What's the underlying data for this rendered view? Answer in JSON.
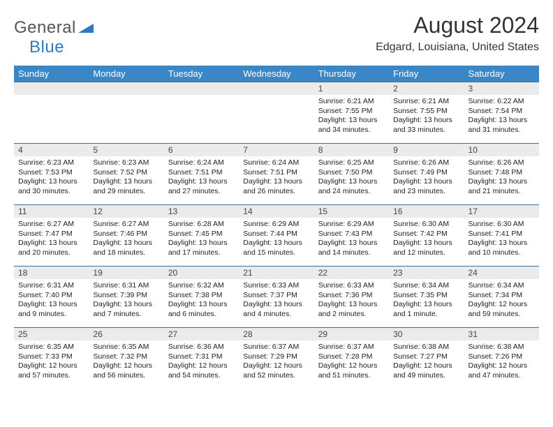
{
  "logo": {
    "part1": "General",
    "part2": "Blue"
  },
  "title": "August 2024",
  "location": "Edgard, Louisiana, United States",
  "day_headers": [
    "Sunday",
    "Monday",
    "Tuesday",
    "Wednesday",
    "Thursday",
    "Friday",
    "Saturday"
  ],
  "colors": {
    "header_bg": "#3a87c8",
    "header_text": "#ffffff",
    "daynum_bg": "#ebebeb",
    "daynum_border": "#3a6ea5",
    "logo_blue": "#2f7abf",
    "logo_gray": "#555555"
  },
  "weeks": [
    [
      {
        "num": "",
        "sunrise": "",
        "sunset": "",
        "daylight": ""
      },
      {
        "num": "",
        "sunrise": "",
        "sunset": "",
        "daylight": ""
      },
      {
        "num": "",
        "sunrise": "",
        "sunset": "",
        "daylight": ""
      },
      {
        "num": "",
        "sunrise": "",
        "sunset": "",
        "daylight": ""
      },
      {
        "num": "1",
        "sunrise": "Sunrise: 6:21 AM",
        "sunset": "Sunset: 7:55 PM",
        "daylight": "Daylight: 13 hours and 34 minutes."
      },
      {
        "num": "2",
        "sunrise": "Sunrise: 6:21 AM",
        "sunset": "Sunset: 7:55 PM",
        "daylight": "Daylight: 13 hours and 33 minutes."
      },
      {
        "num": "3",
        "sunrise": "Sunrise: 6:22 AM",
        "sunset": "Sunset: 7:54 PM",
        "daylight": "Daylight: 13 hours and 31 minutes."
      }
    ],
    [
      {
        "num": "4",
        "sunrise": "Sunrise: 6:23 AM",
        "sunset": "Sunset: 7:53 PM",
        "daylight": "Daylight: 13 hours and 30 minutes."
      },
      {
        "num": "5",
        "sunrise": "Sunrise: 6:23 AM",
        "sunset": "Sunset: 7:52 PM",
        "daylight": "Daylight: 13 hours and 29 minutes."
      },
      {
        "num": "6",
        "sunrise": "Sunrise: 6:24 AM",
        "sunset": "Sunset: 7:51 PM",
        "daylight": "Daylight: 13 hours and 27 minutes."
      },
      {
        "num": "7",
        "sunrise": "Sunrise: 6:24 AM",
        "sunset": "Sunset: 7:51 PM",
        "daylight": "Daylight: 13 hours and 26 minutes."
      },
      {
        "num": "8",
        "sunrise": "Sunrise: 6:25 AM",
        "sunset": "Sunset: 7:50 PM",
        "daylight": "Daylight: 13 hours and 24 minutes."
      },
      {
        "num": "9",
        "sunrise": "Sunrise: 6:26 AM",
        "sunset": "Sunset: 7:49 PM",
        "daylight": "Daylight: 13 hours and 23 minutes."
      },
      {
        "num": "10",
        "sunrise": "Sunrise: 6:26 AM",
        "sunset": "Sunset: 7:48 PM",
        "daylight": "Daylight: 13 hours and 21 minutes."
      }
    ],
    [
      {
        "num": "11",
        "sunrise": "Sunrise: 6:27 AM",
        "sunset": "Sunset: 7:47 PM",
        "daylight": "Daylight: 13 hours and 20 minutes."
      },
      {
        "num": "12",
        "sunrise": "Sunrise: 6:27 AM",
        "sunset": "Sunset: 7:46 PM",
        "daylight": "Daylight: 13 hours and 18 minutes."
      },
      {
        "num": "13",
        "sunrise": "Sunrise: 6:28 AM",
        "sunset": "Sunset: 7:45 PM",
        "daylight": "Daylight: 13 hours and 17 minutes."
      },
      {
        "num": "14",
        "sunrise": "Sunrise: 6:29 AM",
        "sunset": "Sunset: 7:44 PM",
        "daylight": "Daylight: 13 hours and 15 minutes."
      },
      {
        "num": "15",
        "sunrise": "Sunrise: 6:29 AM",
        "sunset": "Sunset: 7:43 PM",
        "daylight": "Daylight: 13 hours and 14 minutes."
      },
      {
        "num": "16",
        "sunrise": "Sunrise: 6:30 AM",
        "sunset": "Sunset: 7:42 PM",
        "daylight": "Daylight: 13 hours and 12 minutes."
      },
      {
        "num": "17",
        "sunrise": "Sunrise: 6:30 AM",
        "sunset": "Sunset: 7:41 PM",
        "daylight": "Daylight: 13 hours and 10 minutes."
      }
    ],
    [
      {
        "num": "18",
        "sunrise": "Sunrise: 6:31 AM",
        "sunset": "Sunset: 7:40 PM",
        "daylight": "Daylight: 13 hours and 9 minutes."
      },
      {
        "num": "19",
        "sunrise": "Sunrise: 6:31 AM",
        "sunset": "Sunset: 7:39 PM",
        "daylight": "Daylight: 13 hours and 7 minutes."
      },
      {
        "num": "20",
        "sunrise": "Sunrise: 6:32 AM",
        "sunset": "Sunset: 7:38 PM",
        "daylight": "Daylight: 13 hours and 6 minutes."
      },
      {
        "num": "21",
        "sunrise": "Sunrise: 6:33 AM",
        "sunset": "Sunset: 7:37 PM",
        "daylight": "Daylight: 13 hours and 4 minutes."
      },
      {
        "num": "22",
        "sunrise": "Sunrise: 6:33 AM",
        "sunset": "Sunset: 7:36 PM",
        "daylight": "Daylight: 13 hours and 2 minutes."
      },
      {
        "num": "23",
        "sunrise": "Sunrise: 6:34 AM",
        "sunset": "Sunset: 7:35 PM",
        "daylight": "Daylight: 13 hours and 1 minute."
      },
      {
        "num": "24",
        "sunrise": "Sunrise: 6:34 AM",
        "sunset": "Sunset: 7:34 PM",
        "daylight": "Daylight: 12 hours and 59 minutes."
      }
    ],
    [
      {
        "num": "25",
        "sunrise": "Sunrise: 6:35 AM",
        "sunset": "Sunset: 7:33 PM",
        "daylight": "Daylight: 12 hours and 57 minutes."
      },
      {
        "num": "26",
        "sunrise": "Sunrise: 6:35 AM",
        "sunset": "Sunset: 7:32 PM",
        "daylight": "Daylight: 12 hours and 56 minutes."
      },
      {
        "num": "27",
        "sunrise": "Sunrise: 6:36 AM",
        "sunset": "Sunset: 7:31 PM",
        "daylight": "Daylight: 12 hours and 54 minutes."
      },
      {
        "num": "28",
        "sunrise": "Sunrise: 6:37 AM",
        "sunset": "Sunset: 7:29 PM",
        "daylight": "Daylight: 12 hours and 52 minutes."
      },
      {
        "num": "29",
        "sunrise": "Sunrise: 6:37 AM",
        "sunset": "Sunset: 7:28 PM",
        "daylight": "Daylight: 12 hours and 51 minutes."
      },
      {
        "num": "30",
        "sunrise": "Sunrise: 6:38 AM",
        "sunset": "Sunset: 7:27 PM",
        "daylight": "Daylight: 12 hours and 49 minutes."
      },
      {
        "num": "31",
        "sunrise": "Sunrise: 6:38 AM",
        "sunset": "Sunset: 7:26 PM",
        "daylight": "Daylight: 12 hours and 47 minutes."
      }
    ]
  ]
}
